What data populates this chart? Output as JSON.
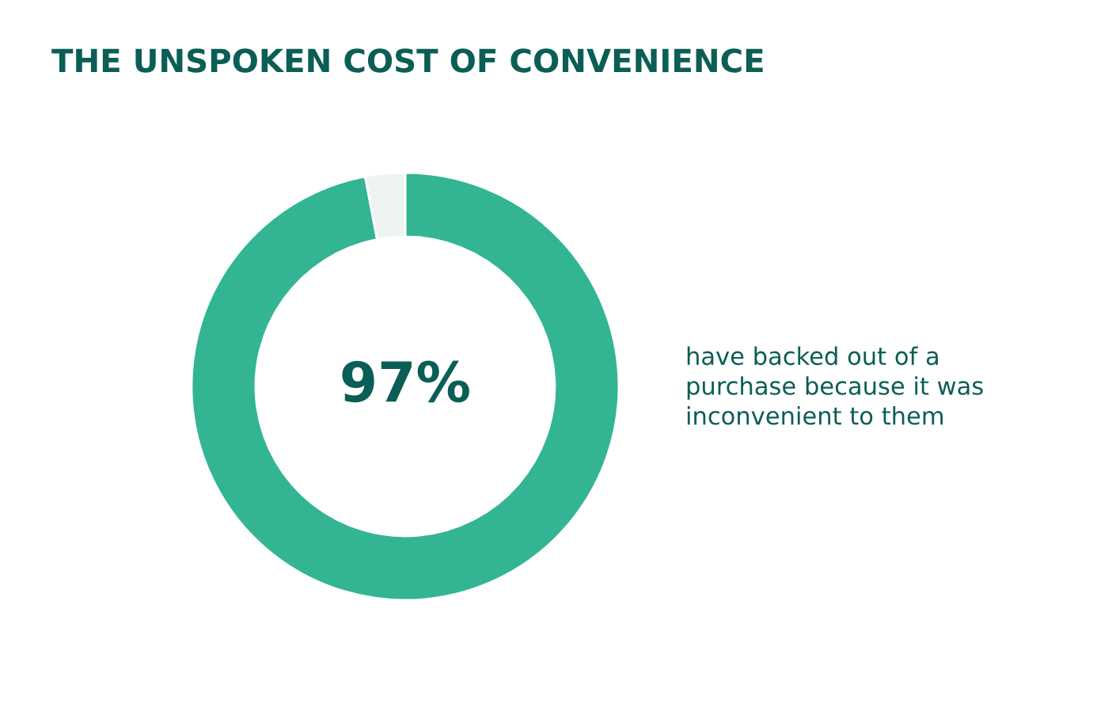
{
  "chart_data": {
    "type": "donut",
    "title": "THE UNSPOKEN COST OF CONVENIENCE",
    "categories": [
      null,
      null
    ],
    "values": [
      97,
      3
    ],
    "colors": [
      "#33b594",
      "#eef4f2"
    ],
    "value_labels": [
      "97%",
      null
    ],
    "annotations": [
      "have backed out of a\npurchase because it was\ninconvenient to them"
    ]
  }
}
